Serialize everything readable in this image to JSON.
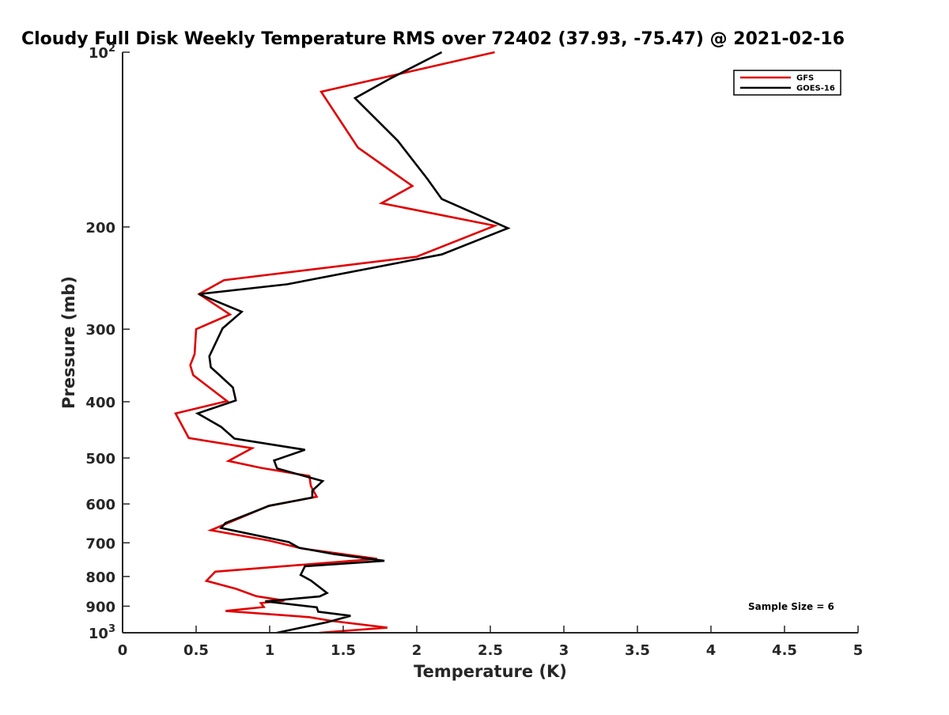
{
  "chart_data": {
    "type": "line",
    "title": "Cloudy Full Disk Weekly Temperature RMS over 72402 (37.93, -75.47) @ 2021-02-16",
    "xlabel": "Temperature (K)",
    "ylabel": "Pressure (mb)",
    "xlim": [
      0,
      5
    ],
    "ylim": [
      100,
      1000
    ],
    "y_scale": "log",
    "y_reversed": true,
    "grid": false,
    "legend_position": "top-right",
    "xticks": [
      0,
      0.5,
      1,
      1.5,
      2,
      2.5,
      3,
      3.5,
      4,
      4.5,
      5
    ],
    "xtick_labels": [
      "0",
      "0.5",
      "1",
      "1.5",
      "2",
      "2.5",
      "3",
      "3.5",
      "4",
      "4.5",
      "5"
    ],
    "yticks": [
      {
        "value": 100,
        "base": "10",
        "exp": "2"
      },
      {
        "value": 200,
        "label": "200"
      },
      {
        "value": 300,
        "label": "300"
      },
      {
        "value": 400,
        "label": "400"
      },
      {
        "value": 500,
        "label": "500"
      },
      {
        "value": 600,
        "label": "600"
      },
      {
        "value": 700,
        "label": "700"
      },
      {
        "value": 800,
        "label": "800"
      },
      {
        "value": 900,
        "label": "900"
      },
      {
        "value": 1000,
        "base": "10",
        "exp": "3"
      }
    ],
    "series": [
      {
        "name": "GFS",
        "color": "#e00000",
        "points": [
          [
            2.53,
            100
          ],
          [
            1.35,
            117
          ],
          [
            1.6,
            146
          ],
          [
            1.97,
            170
          ],
          [
            1.76,
            182
          ],
          [
            2.53,
            199
          ],
          [
            2.0,
            225
          ],
          [
            0.69,
            247
          ],
          [
            0.52,
            261
          ],
          [
            0.73,
            283
          ],
          [
            0.5,
            300
          ],
          [
            0.49,
            331
          ],
          [
            0.46,
            346
          ],
          [
            0.48,
            360
          ],
          [
            0.71,
            399
          ],
          [
            0.36,
            419
          ],
          [
            0.45,
            462
          ],
          [
            0.88,
            481
          ],
          [
            0.72,
            506
          ],
          [
            0.94,
            520
          ],
          [
            1.27,
            537
          ],
          [
            1.28,
            559
          ],
          [
            1.32,
            583
          ],
          [
            0.99,
            605
          ],
          [
            0.6,
            666
          ],
          [
            1.0,
            694
          ],
          [
            1.22,
            716
          ],
          [
            1.73,
            746
          ],
          [
            0.63,
            785
          ],
          [
            0.57,
            814
          ],
          [
            0.77,
            840
          ],
          [
            0.91,
            865
          ],
          [
            1.1,
            880
          ],
          [
            0.94,
            889
          ],
          [
            0.96,
            903
          ],
          [
            0.7,
            917
          ],
          [
            1.27,
            940
          ],
          [
            1.42,
            954
          ],
          [
            1.8,
            980
          ],
          [
            1.34,
            1000
          ]
        ]
      },
      {
        "name": "GOES-16",
        "color": "#000000",
        "points": [
          [
            2.17,
            100
          ],
          [
            1.82,
            111
          ],
          [
            1.58,
            120
          ],
          [
            1.87,
            142
          ],
          [
            2.07,
            165
          ],
          [
            2.17,
            179
          ],
          [
            2.62,
            201
          ],
          [
            2.17,
            223
          ],
          [
            1.12,
            251
          ],
          [
            0.52,
            261
          ],
          [
            0.81,
            280
          ],
          [
            0.68,
            299
          ],
          [
            0.59,
            334
          ],
          [
            0.6,
            349
          ],
          [
            0.67,
            362
          ],
          [
            0.75,
            378
          ],
          [
            0.77,
            398
          ],
          [
            0.51,
            419
          ],
          [
            0.67,
            442
          ],
          [
            0.76,
            463
          ],
          [
            1.24,
            484
          ],
          [
            1.03,
            505
          ],
          [
            1.05,
            521
          ],
          [
            1.36,
            548
          ],
          [
            1.29,
            569
          ],
          [
            1.29,
            585
          ],
          [
            1.0,
            604
          ],
          [
            0.7,
            647
          ],
          [
            0.67,
            660
          ],
          [
            1.13,
            698
          ],
          [
            1.2,
            714
          ],
          [
            1.44,
            732
          ],
          [
            1.78,
            752
          ],
          [
            1.24,
            768
          ],
          [
            1.21,
            795
          ],
          [
            1.28,
            813
          ],
          [
            1.39,
            854
          ],
          [
            1.34,
            866
          ],
          [
            0.97,
            883
          ],
          [
            1.32,
            904
          ],
          [
            1.33,
            920
          ],
          [
            1.55,
            935
          ],
          [
            1.39,
            959
          ],
          [
            1.05,
            1000
          ]
        ]
      }
    ],
    "annotations": [
      "Sample Size = 6"
    ]
  }
}
